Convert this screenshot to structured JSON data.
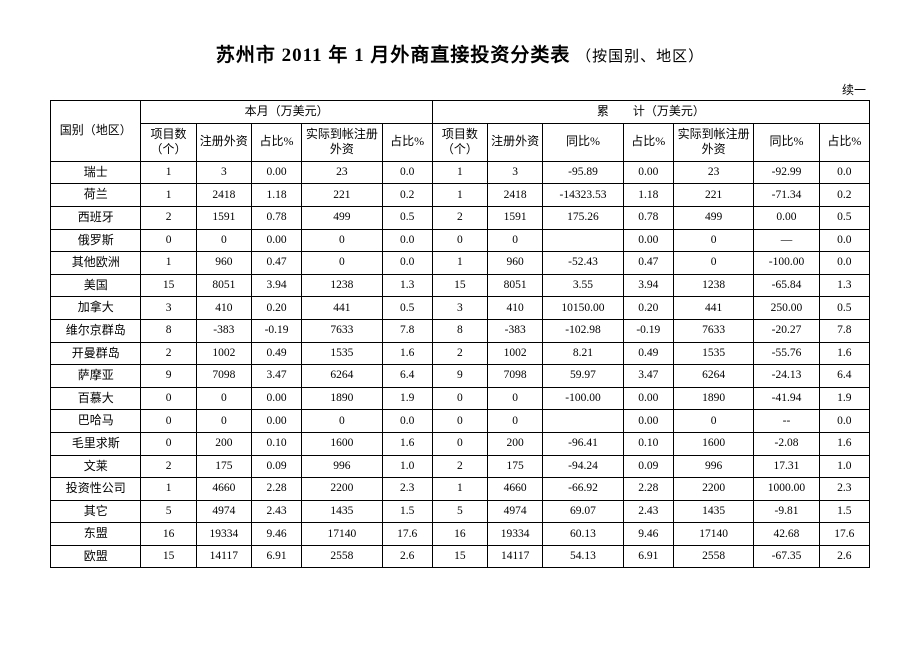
{
  "title_main": "苏州市 2011 年 1 月外商直接投资分类表",
  "title_sub": "（按国别、地区）",
  "continuation": "续一",
  "header": {
    "region": "国别（地区）",
    "month_group": "本月（万美元）",
    "cumulative_group": "累　　计（万美元）",
    "month_cols": [
      "项目数（个）",
      "注册外资",
      "占比%",
      "实际到帐注册外资",
      "占比%"
    ],
    "cum_cols": [
      "项目数（个）",
      "注册外资",
      "同比%",
      "占比%",
      "实际到帐注册外资",
      "同比%",
      "占比%"
    ]
  },
  "rows": [
    {
      "region": "瑞士",
      "m": [
        "1",
        "3",
        "0.00",
        "23",
        "0.0"
      ],
      "c": [
        "1",
        "3",
        "-95.89",
        "0.00",
        "23",
        "-92.99",
        "0.0"
      ]
    },
    {
      "region": "荷兰",
      "m": [
        "1",
        "2418",
        "1.18",
        "221",
        "0.2"
      ],
      "c": [
        "1",
        "2418",
        "-14323.53",
        "1.18",
        "221",
        "-71.34",
        "0.2"
      ]
    },
    {
      "region": "西班牙",
      "m": [
        "2",
        "1591",
        "0.78",
        "499",
        "0.5"
      ],
      "c": [
        "2",
        "1591",
        "175.26",
        "0.78",
        "499",
        "0.00",
        "0.5"
      ]
    },
    {
      "region": "俄罗斯",
      "m": [
        "0",
        "0",
        "0.00",
        "0",
        "0.0"
      ],
      "c": [
        "0",
        "0",
        "",
        "0.00",
        "0",
        "—",
        "0.0"
      ]
    },
    {
      "region": "其他欧洲",
      "m": [
        "1",
        "960",
        "0.47",
        "0",
        "0.0"
      ],
      "c": [
        "1",
        "960",
        "-52.43",
        "0.47",
        "0",
        "-100.00",
        "0.0"
      ]
    },
    {
      "region": "美国",
      "m": [
        "15",
        "8051",
        "3.94",
        "1238",
        "1.3"
      ],
      "c": [
        "15",
        "8051",
        "3.55",
        "3.94",
        "1238",
        "-65.84",
        "1.3"
      ]
    },
    {
      "region": "加拿大",
      "m": [
        "3",
        "410",
        "0.20",
        "441",
        "0.5"
      ],
      "c": [
        "3",
        "410",
        "10150.00",
        "0.20",
        "441",
        "250.00",
        "0.5"
      ]
    },
    {
      "region": "维尔京群岛",
      "m": [
        "8",
        "-383",
        "-0.19",
        "7633",
        "7.8"
      ],
      "c": [
        "8",
        "-383",
        "-102.98",
        "-0.19",
        "7633",
        "-20.27",
        "7.8"
      ]
    },
    {
      "region": "开曼群岛",
      "m": [
        "2",
        "1002",
        "0.49",
        "1535",
        "1.6"
      ],
      "c": [
        "2",
        "1002",
        "8.21",
        "0.49",
        "1535",
        "-55.76",
        "1.6"
      ]
    },
    {
      "region": "萨摩亚",
      "m": [
        "9",
        "7098",
        "3.47",
        "6264",
        "6.4"
      ],
      "c": [
        "9",
        "7098",
        "59.97",
        "3.47",
        "6264",
        "-24.13",
        "6.4"
      ]
    },
    {
      "region": "百慕大",
      "m": [
        "0",
        "0",
        "0.00",
        "1890",
        "1.9"
      ],
      "c": [
        "0",
        "0",
        "-100.00",
        "0.00",
        "1890",
        "-41.94",
        "1.9"
      ]
    },
    {
      "region": "巴哈马",
      "m": [
        "0",
        "0",
        "0.00",
        "0",
        "0.0"
      ],
      "c": [
        "0",
        "0",
        "",
        "0.00",
        "0",
        "--",
        "0.0"
      ]
    },
    {
      "region": "毛里求斯",
      "m": [
        "0",
        "200",
        "0.10",
        "1600",
        "1.6"
      ],
      "c": [
        "0",
        "200",
        "-96.41",
        "0.10",
        "1600",
        "-2.08",
        "1.6"
      ]
    },
    {
      "region": "文莱",
      "m": [
        "2",
        "175",
        "0.09",
        "996",
        "1.0"
      ],
      "c": [
        "2",
        "175",
        "-94.24",
        "0.09",
        "996",
        "17.31",
        "1.0"
      ]
    },
    {
      "region": "投资性公司",
      "m": [
        "1",
        "4660",
        "2.28",
        "2200",
        "2.3"
      ],
      "c": [
        "1",
        "4660",
        "-66.92",
        "2.28",
        "2200",
        "1000.00",
        "2.3"
      ]
    },
    {
      "region": "其它",
      "m": [
        "5",
        "4974",
        "2.43",
        "1435",
        "1.5"
      ],
      "c": [
        "5",
        "4974",
        "69.07",
        "2.43",
        "1435",
        "-9.81",
        "1.5"
      ]
    },
    {
      "region": "东盟",
      "m": [
        "16",
        "19334",
        "9.46",
        "17140",
        "17.6"
      ],
      "c": [
        "16",
        "19334",
        "60.13",
        "9.46",
        "17140",
        "42.68",
        "17.6"
      ]
    },
    {
      "region": "欧盟",
      "m": [
        "15",
        "14117",
        "6.91",
        "2558",
        "2.6"
      ],
      "c": [
        "15",
        "14117",
        "54.13",
        "6.91",
        "2558",
        "-67.35",
        "2.6"
      ]
    }
  ],
  "col_widths": {
    "region": "9%",
    "m": [
      "5.5%",
      "5.5%",
      "5%",
      "8%",
      "5%"
    ],
    "c": [
      "5.5%",
      "5.5%",
      "8%",
      "5%",
      "8%",
      "6.5%",
      "5%"
    ]
  }
}
